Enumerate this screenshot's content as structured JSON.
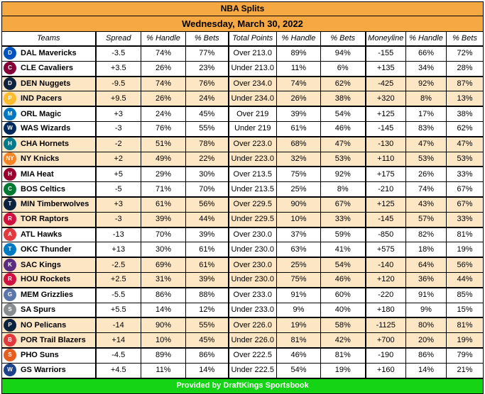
{
  "title": "NBA Splits",
  "date": "Wednesday, March 30, 2022",
  "headers": [
    "Teams",
    "Spread",
    "% Handle",
    "% Bets",
    "Total Points",
    "% Handle",
    "% Bets",
    "Moneyline",
    "% Handle",
    "% Bets"
  ],
  "footer": "Provided by DraftKings Sportsbook",
  "games": [
    {
      "shade": false,
      "teams": [
        {
          "name": "DAL Mavericks",
          "icon": "mavericks-logo-icon",
          "color": "#0053bc",
          "abbr": "D",
          "spread": "-3.5",
          "sh": "74%",
          "sb": "77%",
          "total": "Over 213.0",
          "th": "89%",
          "tb": "94%",
          "ml": "-155",
          "mh": "66%",
          "mb": "72%"
        },
        {
          "name": "CLE Cavaliers",
          "icon": "cavaliers-logo-icon",
          "color": "#860038",
          "abbr": "C",
          "spread": "+3.5",
          "sh": "26%",
          "sb": "23%",
          "total": "Under 213.0",
          "th": "11%",
          "tb": "6%",
          "ml": "+135",
          "mh": "34%",
          "mb": "28%"
        }
      ]
    },
    {
      "shade": true,
      "teams": [
        {
          "name": "DEN Nuggets",
          "icon": "nuggets-logo-icon",
          "color": "#0e2240",
          "abbr": "D",
          "spread": "-9.5",
          "sh": "74%",
          "sb": "76%",
          "total": "Over 234.0",
          "th": "74%",
          "tb": "62%",
          "ml": "-425",
          "mh": "92%",
          "mb": "87%"
        },
        {
          "name": "IND Pacers",
          "icon": "pacers-logo-icon",
          "color": "#fdbb30",
          "abbr": "P",
          "spread": "+9.5",
          "sh": "26%",
          "sb": "24%",
          "total": "Under 234.0",
          "th": "26%",
          "tb": "38%",
          "ml": "+320",
          "mh": "8%",
          "mb": "13%"
        }
      ]
    },
    {
      "shade": false,
      "teams": [
        {
          "name": "ORL Magic",
          "icon": "magic-logo-icon",
          "color": "#0077c0",
          "abbr": "M",
          "spread": "+3",
          "sh": "24%",
          "sb": "45%",
          "total": "Over 219",
          "th": "39%",
          "tb": "54%",
          "ml": "+125",
          "mh": "17%",
          "mb": "38%"
        },
        {
          "name": "WAS Wizards",
          "icon": "wizards-logo-icon",
          "color": "#002b5c",
          "abbr": "W",
          "spread": "-3",
          "sh": "76%",
          "sb": "55%",
          "total": "Under 219",
          "th": "61%",
          "tb": "46%",
          "ml": "-145",
          "mh": "83%",
          "mb": "62%"
        }
      ]
    },
    {
      "shade": true,
      "teams": [
        {
          "name": "CHA Hornets",
          "icon": "hornets-logo-icon",
          "color": "#00788c",
          "abbr": "H",
          "spread": "-2",
          "sh": "51%",
          "sb": "78%",
          "total": "Over 223.0",
          "th": "68%",
          "tb": "47%",
          "ml": "-130",
          "mh": "47%",
          "mb": "47%"
        },
        {
          "name": "NY Knicks",
          "icon": "knicks-logo-icon",
          "color": "#f58426",
          "abbr": "NY",
          "spread": "+2",
          "sh": "49%",
          "sb": "22%",
          "total": "Under 223.0",
          "th": "32%",
          "tb": "53%",
          "ml": "+110",
          "mh": "53%",
          "mb": "53%"
        }
      ]
    },
    {
      "shade": false,
      "teams": [
        {
          "name": "MIA Heat",
          "icon": "heat-logo-icon",
          "color": "#98002e",
          "abbr": "H",
          "spread": "+5",
          "sh": "29%",
          "sb": "30%",
          "total": "Over 213.5",
          "th": "75%",
          "tb": "92%",
          "ml": "+175",
          "mh": "26%",
          "mb": "33%"
        },
        {
          "name": "BOS Celtics",
          "icon": "celtics-logo-icon",
          "color": "#007a33",
          "abbr": "C",
          "spread": "-5",
          "sh": "71%",
          "sb": "70%",
          "total": "Under 213.5",
          "th": "25%",
          "tb": "8%",
          "ml": "-210",
          "mh": "74%",
          "mb": "67%"
        }
      ]
    },
    {
      "shade": true,
      "teams": [
        {
          "name": "MIN Timberwolves",
          "icon": "timberwolves-logo-icon",
          "color": "#0c2340",
          "abbr": "T",
          "spread": "+3",
          "sh": "61%",
          "sb": "56%",
          "total": "Over 229.5",
          "th": "90%",
          "tb": "67%",
          "ml": "+125",
          "mh": "43%",
          "mb": "67%"
        },
        {
          "name": "TOR Raptors",
          "icon": "raptors-logo-icon",
          "color": "#ce1141",
          "abbr": "R",
          "spread": "-3",
          "sh": "39%",
          "sb": "44%",
          "total": "Under 229.5",
          "th": "10%",
          "tb": "33%",
          "ml": "-145",
          "mh": "57%",
          "mb": "33%"
        }
      ]
    },
    {
      "shade": false,
      "teams": [
        {
          "name": "ATL Hawks",
          "icon": "hawks-logo-icon",
          "color": "#e03a3e",
          "abbr": "A",
          "spread": "-13",
          "sh": "70%",
          "sb": "39%",
          "total": "Over 230.0",
          "th": "37%",
          "tb": "59%",
          "ml": "-850",
          "mh": "82%",
          "mb": "81%"
        },
        {
          "name": "OKC Thunder",
          "icon": "thunder-logo-icon",
          "color": "#007ac1",
          "abbr": "T",
          "spread": "+13",
          "sh": "30%",
          "sb": "61%",
          "total": "Under 230.0",
          "th": "63%",
          "tb": "41%",
          "ml": "+575",
          "mh": "18%",
          "mb": "19%"
        }
      ]
    },
    {
      "shade": true,
      "teams": [
        {
          "name": "SAC Kings",
          "icon": "kings-logo-icon",
          "color": "#5a2d81",
          "abbr": "K",
          "spread": "-2.5",
          "sh": "69%",
          "sb": "61%",
          "total": "Over 230.0",
          "th": "25%",
          "tb": "54%",
          "ml": "-140",
          "mh": "64%",
          "mb": "56%"
        },
        {
          "name": "HOU Rockets",
          "icon": "rockets-logo-icon",
          "color": "#ce1141",
          "abbr": "R",
          "spread": "+2.5",
          "sh": "31%",
          "sb": "39%",
          "total": "Under 230.0",
          "th": "75%",
          "tb": "46%",
          "ml": "+120",
          "mh": "36%",
          "mb": "44%"
        }
      ]
    },
    {
      "shade": false,
      "teams": [
        {
          "name": "MEM Grizzlies",
          "icon": "grizzlies-logo-icon",
          "color": "#5d76a9",
          "abbr": "G",
          "spread": "-5.5",
          "sh": "86%",
          "sb": "88%",
          "total": "Over 233.0",
          "th": "91%",
          "tb": "60%",
          "ml": "-220",
          "mh": "91%",
          "mb": "85%"
        },
        {
          "name": "SA Spurs",
          "icon": "spurs-logo-icon",
          "color": "#8a8d8f",
          "abbr": "S",
          "spread": "+5.5",
          "sh": "14%",
          "sb": "12%",
          "total": "Under 233.0",
          "th": "9%",
          "tb": "40%",
          "ml": "+180",
          "mh": "9%",
          "mb": "15%"
        }
      ]
    },
    {
      "shade": true,
      "teams": [
        {
          "name": "NO Pelicans",
          "icon": "pelicans-logo-icon",
          "color": "#0c2340",
          "abbr": "P",
          "spread": "-14",
          "sh": "90%",
          "sb": "55%",
          "total": "Over 226.0",
          "th": "19%",
          "tb": "58%",
          "ml": "-1125",
          "mh": "80%",
          "mb": "81%"
        },
        {
          "name": "POR Trail Blazers",
          "icon": "blazers-logo-icon",
          "color": "#e03a3e",
          "abbr": "B",
          "spread": "+14",
          "sh": "10%",
          "sb": "45%",
          "total": "Under 226.0",
          "th": "81%",
          "tb": "42%",
          "ml": "+700",
          "mh": "20%",
          "mb": "19%"
        }
      ]
    },
    {
      "shade": false,
      "teams": [
        {
          "name": "PHO Suns",
          "icon": "suns-logo-icon",
          "color": "#e56020",
          "abbr": "S",
          "spread": "-4.5",
          "sh": "89%",
          "sb": "86%",
          "total": "Over 222.5",
          "th": "46%",
          "tb": "81%",
          "ml": "-190",
          "mh": "86%",
          "mb": "79%"
        },
        {
          "name": "GS Warriors",
          "icon": "warriors-logo-icon",
          "color": "#1d428a",
          "abbr": "W",
          "spread": "+4.5",
          "sh": "11%",
          "sb": "14%",
          "total": "Under 222.5",
          "th": "54%",
          "tb": "19%",
          "ml": "+160",
          "mh": "14%",
          "mb": "21%"
        }
      ]
    }
  ]
}
